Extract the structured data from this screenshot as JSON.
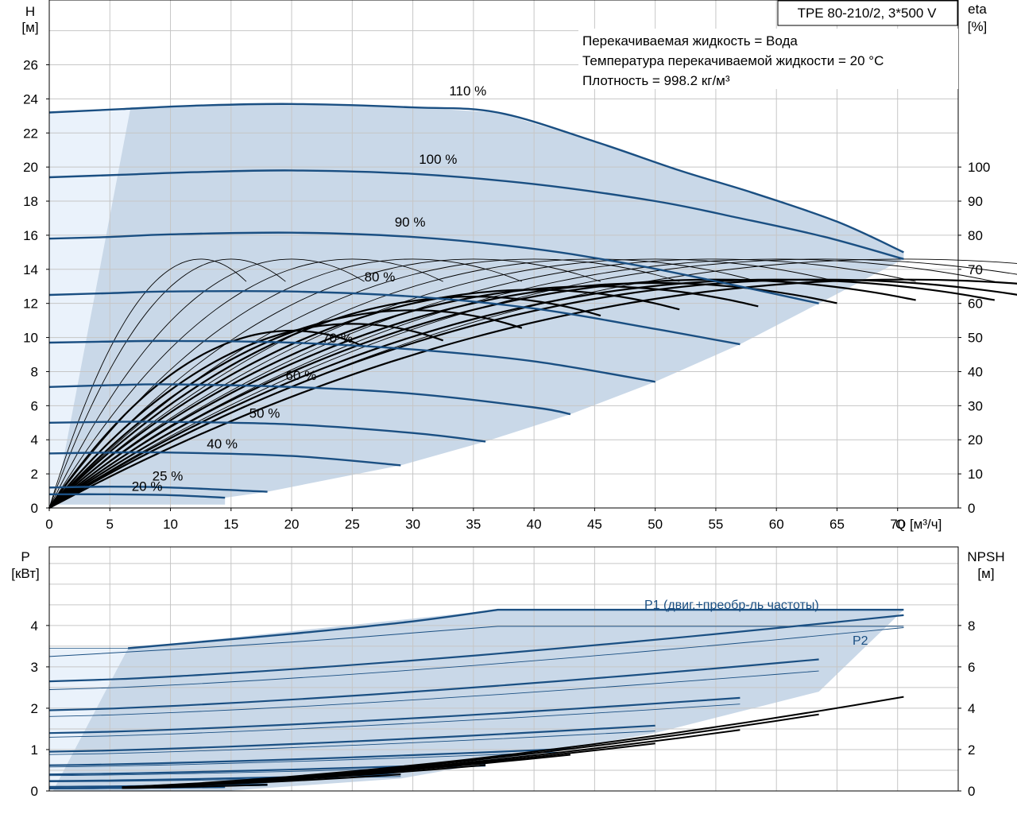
{
  "chart_data": [
    {
      "type": "line",
      "title": "TPE 80-210/2, 3*500 V",
      "info": [
        "Перекачиваемая жидкость = Вода",
        "Температура перекачиваемой жидкости = 20 °C",
        "Плотность = 998.2 кг/м³"
      ],
      "xlabel": "Q [м³/ч]",
      "ylabel": [
        "H",
        "[м]"
      ],
      "y2label": [
        "eta",
        "[%]"
      ],
      "xlim": [
        0,
        75
      ],
      "ylim": [
        0,
        29.8
      ],
      "y2lim": [
        0,
        149
      ],
      "xticks": [
        "0",
        "5",
        "10",
        "15",
        "20",
        "25",
        "30",
        "35",
        "40",
        "45",
        "50",
        "55",
        "60",
        "65",
        "70"
      ],
      "yticks": [
        "0",
        "2",
        "4",
        "6",
        "8",
        "10",
        "12",
        "14",
        "16",
        "18",
        "20",
        "22",
        "24",
        "26"
      ],
      "y2ticks": [
        "0",
        "10",
        "20",
        "30",
        "40",
        "50",
        "60",
        "70",
        "80",
        "90",
        "100"
      ],
      "grid": true,
      "operating_area_colors": {
        "fill": "#c9d8e8",
        "lowflow": "#eaf2fb",
        "curve": "#1a4f82"
      },
      "head_curves": [
        {
          "name": "110 %",
          "points": [
            [
              0,
              23.2
            ],
            [
              6,
              23.4
            ],
            [
              12,
              23.6
            ],
            [
              20,
              23.7
            ],
            [
              30,
              23.5
            ],
            [
              37,
              23.2
            ],
            [
              45,
              21.5
            ],
            [
              52,
              19.8
            ],
            [
              58,
              18.5
            ],
            [
              65,
              16.8
            ],
            [
              70.5,
              15
            ]
          ]
        },
        {
          "name": "100 %",
          "points": [
            [
              0,
              19.4
            ],
            [
              6,
              19.55
            ],
            [
              12,
              19.7
            ],
            [
              20,
              19.8
            ],
            [
              30,
              19.6
            ],
            [
              40,
              19
            ],
            [
              50,
              18
            ],
            [
              57,
              17
            ],
            [
              64,
              15.9
            ],
            [
              70.5,
              14.6
            ]
          ]
        },
        {
          "name": "90 %",
          "points": [
            [
              0,
              15.8
            ],
            [
              5,
              15.9
            ],
            [
              10,
              16.05
            ],
            [
              20,
              16.15
            ],
            [
              30,
              15.9
            ],
            [
              40,
              15.2
            ],
            [
              48,
              14.3
            ],
            [
              55,
              13.3
            ],
            [
              63.5,
              12
            ]
          ]
        },
        {
          "name": "80 %",
          "points": [
            [
              0,
              12.5
            ],
            [
              5,
              12.6
            ],
            [
              10,
              12.7
            ],
            [
              20,
              12.7
            ],
            [
              30,
              12.4
            ],
            [
              40,
              11.7
            ],
            [
              50,
              10.5
            ],
            [
              57,
              9.6
            ]
          ]
        },
        {
          "name": "70 %",
          "points": [
            [
              0,
              9.7
            ],
            [
              4,
              9.75
            ],
            [
              10,
              9.8
            ],
            [
              20,
              9.7
            ],
            [
              30,
              9.3
            ],
            [
              40,
              8.6
            ],
            [
              50,
              7.4
            ]
          ]
        },
        {
          "name": "60 %",
          "points": [
            [
              0,
              7.1
            ],
            [
              5,
              7.2
            ],
            [
              10,
              7.25
            ],
            [
              20,
              7.1
            ],
            [
              30,
              6.7
            ],
            [
              40,
              5.9
            ],
            [
              43,
              5.5
            ]
          ]
        },
        {
          "name": "50 %",
          "points": [
            [
              0,
              5.0
            ],
            [
              5,
              5.05
            ],
            [
              10,
              5.05
            ],
            [
              20,
              4.9
            ],
            [
              30,
              4.4
            ],
            [
              36,
              3.9
            ]
          ]
        },
        {
          "name": "40 %",
          "points": [
            [
              0,
              3.2
            ],
            [
              5,
              3.25
            ],
            [
              10,
              3.25
            ],
            [
              20,
              3.05
            ],
            [
              29,
              2.5
            ]
          ]
        },
        {
          "name": "25 %",
          "points": [
            [
              0,
              1.2
            ],
            [
              5,
              1.25
            ],
            [
              10,
              1.2
            ],
            [
              18,
              0.95
            ]
          ]
        },
        {
          "name": "20 %",
          "points": [
            [
              0,
              0.8
            ],
            [
              5,
              0.8
            ],
            [
              10,
              0.75
            ],
            [
              14.5,
              0.6
            ]
          ]
        }
      ],
      "efficiency_thin_peaks": [
        [
          12.5,
          73
        ],
        [
          15,
          73
        ],
        [
          20,
          73
        ],
        [
          25,
          73
        ],
        [
          30,
          73
        ],
        [
          35,
          73
        ],
        [
          40,
          73
        ],
        [
          45,
          73
        ],
        [
          50,
          73
        ],
        [
          55,
          73
        ],
        [
          60,
          73
        ],
        [
          64,
          73
        ],
        [
          70.5,
          73
        ]
      ],
      "efficiency_bold_peaks": [
        [
          20,
          52
        ],
        [
          25,
          54
        ],
        [
          30,
          58
        ],
        [
          35,
          62
        ],
        [
          40,
          64
        ],
        [
          45,
          65
        ],
        [
          50,
          66
        ],
        [
          55,
          67
        ],
        [
          60,
          67
        ],
        [
          63.5,
          67
        ],
        [
          70.5,
          67
        ]
      ]
    },
    {
      "type": "line",
      "ylabel": [
        "P",
        "[кВт]"
      ],
      "y2label": [
        "NPSH",
        "[м]"
      ],
      "xlim": [
        0,
        75
      ],
      "ylim": [
        0,
        5.9
      ],
      "y2lim": [
        0,
        11.8
      ],
      "yticks": [
        "0",
        "1",
        "2",
        "3",
        "4"
      ],
      "y2ticks": [
        "0",
        "2",
        "4",
        "6",
        "8"
      ],
      "grid": true,
      "series_labels": [
        "P1 (двиг.+преобр-ль частоты)",
        "P2"
      ],
      "power_curves": [
        {
          "p1": [
            3.45,
            4.38
          ],
          "p2": [
            3.25,
            3.98
          ],
          "qmax": 70.5
        },
        {
          "p1": [
            2.65,
            4.25
          ],
          "p2": [
            2.45,
            3.95
          ],
          "qmax": 70.5
        },
        {
          "p1": [
            1.95,
            3.18
          ],
          "p2": [
            1.8,
            2.9
          ],
          "qmax": 63.5
        },
        {
          "p1": [
            1.4,
            2.25
          ],
          "p2": [
            1.3,
            2.1
          ],
          "qmax": 57
        },
        {
          "p1": [
            0.95,
            1.58
          ],
          "p2": [
            0.88,
            1.45
          ],
          "qmax": 50
        },
        {
          "p1": [
            0.62,
            1.02
          ],
          "p2": [
            0.58,
            0.95
          ],
          "qmax": 43
        },
        {
          "p1": [
            0.4,
            0.66
          ],
          "p2": [
            0.37,
            0.6
          ],
          "qmax": 36
        },
        {
          "p1": [
            0.24,
            0.4
          ],
          "p2": [
            0.22,
            0.35
          ],
          "qmax": 29
        },
        {
          "p1": [
            0.1,
            0.16
          ],
          "p2": [
            0.09,
            0.13
          ],
          "qmax": 18
        },
        {
          "p1": [
            0.06,
            0.1
          ],
          "p2": [
            0.05,
            0.08
          ],
          "qmax": 14.5
        }
      ],
      "npsh_curves": [
        {
          "points": [
            [
              0,
              0.1
            ],
            [
              70.5,
              4.55
            ]
          ]
        },
        {
          "points": [
            [
              0,
              0.1
            ],
            [
              63.5,
              3.7
            ]
          ]
        },
        {
          "points": [
            [
              0,
              0.1
            ],
            [
              57,
              2.95
            ]
          ]
        },
        {
          "points": [
            [
              0,
              0.1
            ],
            [
              50,
              2.3
            ]
          ]
        },
        {
          "points": [
            [
              0,
              0.1
            ],
            [
              43,
              1.75
            ]
          ]
        },
        {
          "points": [
            [
              0,
              0.1
            ],
            [
              36,
              1.25
            ]
          ]
        },
        {
          "points": [
            [
              0,
              0.1
            ],
            [
              29,
              0.8
            ]
          ]
        },
        {
          "points": [
            [
              0,
              0.1
            ],
            [
              18,
              0.3
            ]
          ]
        }
      ]
    }
  ]
}
